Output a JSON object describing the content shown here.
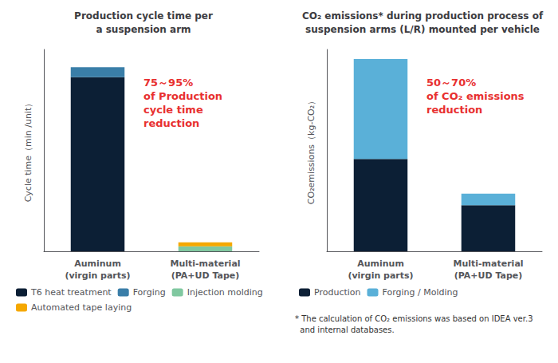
{
  "chart_data": [
    {
      "type": "bar",
      "stacked": true,
      "legend": "bottom",
      "grid": false,
      "tick_labels": "x",
      "title": "Production cycle time per\na suspension arm",
      "ylabel": "Cycle time（min /unit）",
      "categories": [
        "Auminum\n(virgin parts)",
        "Multi-material\n(PA+UD Tape)"
      ],
      "series": [
        {
          "name": "T6 heat treatment",
          "color": "#0c1f35",
          "values": [
            0.88,
            null
          ]
        },
        {
          "name": "Forging",
          "color": "#3a7ea8",
          "values": [
            0.05,
            null
          ]
        },
        {
          "name": "Injection molding",
          "color": "#80c8a0",
          "values": [
            null,
            0.025
          ]
        },
        {
          "name": "Automated tape laying",
          "color": "#f5a800",
          "values": [
            null,
            0.02
          ]
        }
      ],
      "ylim": [
        0,
        1.02
      ],
      "annotation": "75～95%\nof Production\ncycle time\nreduction"
    },
    {
      "type": "bar",
      "stacked": true,
      "legend": "bottom",
      "grid": false,
      "tick_labels": "x",
      "title": "CO₂ emissions* during production process of\nsuspension arms (L/R) mounted per vehicle",
      "ylabel": "CO₂emissions（kg-CO₂）",
      "categories": [
        "Auminum\n(virgin parts)",
        "Multi-material\n(PA+UD Tape)"
      ],
      "series": [
        {
          "name": "Production",
          "color": "#0c1f35",
          "values": [
            0.48,
            0.24
          ]
        },
        {
          "name": "Forging / Molding",
          "color": "#5ab0d8",
          "values": [
            0.52,
            0.06
          ]
        }
      ],
      "ylim": [
        0,
        1.05
      ],
      "annotation": "50～70%\nof CO₂ emissions\nreduction",
      "footnote": "* The calculation of CO₂ emissions was based on IDEA ver.3\n  and internal databases."
    }
  ]
}
